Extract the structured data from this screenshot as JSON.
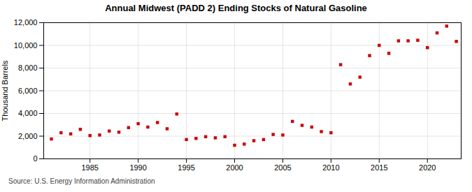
{
  "chart_data": {
    "type": "scatter",
    "title": "Annual Midwest (PADD 2) Ending Stocks of Natural Gasoline",
    "ylabel": "Thousand Barrels",
    "source": "Source: U.S. Energy Information Administration",
    "x": [
      1981,
      1982,
      1983,
      1984,
      1985,
      1986,
      1987,
      1988,
      1989,
      1990,
      1991,
      1992,
      1993,
      1994,
      1995,
      1996,
      1997,
      1998,
      1999,
      2000,
      2001,
      2002,
      2003,
      2004,
      2005,
      2006,
      2007,
      2008,
      2009,
      2010,
      2011,
      2012,
      2013,
      2014,
      2015,
      2016,
      2017,
      2018,
      2019,
      2020,
      2021,
      2022,
      2023
    ],
    "values": [
      1750,
      2300,
      2200,
      2600,
      2050,
      2100,
      2450,
      2350,
      2750,
      3100,
      2800,
      3200,
      2650,
      3950,
      1700,
      1800,
      1950,
      1850,
      1950,
      1200,
      1300,
      1600,
      1700,
      2150,
      2100,
      3300,
      2950,
      2800,
      2400,
      2300,
      8300,
      6600,
      7200,
      9100,
      10000,
      9300,
      10400,
      10400,
      10450,
      9800,
      11100,
      11700,
      10350
    ],
    "color": "#cc0000",
    "marker": "square",
    "xlim": [
      1980.2,
      2023.5
    ],
    "xticks": [
      1985,
      1990,
      1995,
      2000,
      2005,
      2010,
      2015,
      2020
    ],
    "ylim": [
      0,
      12000
    ],
    "yticks": [
      0,
      {
        "value": 2000,
        "label": "2,000"
      },
      {
        "value": 4000,
        "label": "4,000"
      },
      {
        "value": 6000,
        "label": "6,000"
      },
      {
        "value": 8000,
        "label": "8,000"
      },
      {
        "value": 10000,
        "label": "10,000"
      },
      {
        "value": 12000,
        "label": "12,000"
      }
    ],
    "grid": true
  }
}
